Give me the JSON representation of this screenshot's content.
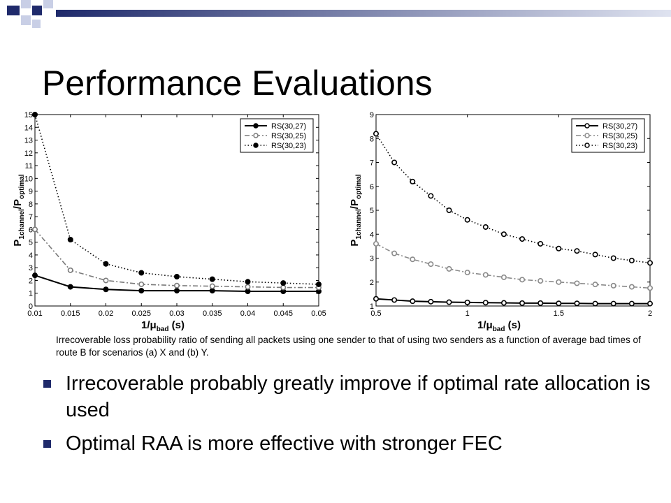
{
  "slide": {
    "title": "Performance Evaluations",
    "caption": "Irrecoverable loss probability ratio of sending all packets using one sender to that of using two senders as a function of average bad times of route B for scenarios (a) X and (b) Y.",
    "bullets": [
      "Irrecoverable probably greatly improve if optimal rate allocation is used",
      "Optimal RAA is more effective with stronger FEC"
    ],
    "accent_color": "#1f2a6b"
  },
  "chart_data": [
    {
      "type": "line",
      "xlabel_main": "1/μ",
      "xlabel_sub": "bad",
      "xlabel_unit": " (s)",
      "ylabel_main": "P",
      "ylabel_sub1": "1channel",
      "ylabel_slash": "/P",
      "ylabel_sub2": "optimal",
      "xlim": [
        0.01,
        0.05
      ],
      "ylim": [
        0,
        15
      ],
      "xticks": [
        "0.01",
        "0.015",
        "0.02",
        "0.025",
        "0.03",
        "0.035",
        "0.04",
        "0.045",
        "0.05"
      ],
      "yticks": [
        "0",
        "1",
        "2",
        "3",
        "4",
        "5",
        "6",
        "7",
        "8",
        "9",
        "10",
        "11",
        "12",
        "13",
        "14",
        "15"
      ],
      "x": [
        0.01,
        0.015,
        0.02,
        0.025,
        0.03,
        0.035,
        0.04,
        0.045,
        0.05
      ],
      "legend_position": "top-right",
      "series": [
        {
          "name": "RS(30,27)",
          "values": [
            2.4,
            1.5,
            1.3,
            1.2,
            1.2,
            1.2,
            1.15,
            1.15,
            1.15
          ],
          "style": "solid",
          "marker": "filled",
          "color": "#000000"
        },
        {
          "name": "RS(30,25)",
          "values": [
            6.0,
            2.8,
            2.0,
            1.7,
            1.6,
            1.55,
            1.5,
            1.45,
            1.45
          ],
          "style": "dashdot",
          "marker": "open",
          "color": "#7a7a7a"
        },
        {
          "name": "RS(30,23)",
          "values": [
            15.0,
            5.2,
            3.3,
            2.6,
            2.3,
            2.1,
            1.9,
            1.8,
            1.7
          ],
          "style": "dotted",
          "marker": "filled",
          "color": "#000000"
        }
      ]
    },
    {
      "type": "line",
      "xlabel_main": "1/μ",
      "xlabel_sub": "bad",
      "xlabel_unit": " (s)",
      "ylabel_main": "P",
      "ylabel_sub1": "1channel",
      "ylabel_slash": "/P",
      "ylabel_sub2": "optimal",
      "xlim": [
        0.5,
        2
      ],
      "ylim": [
        1,
        9
      ],
      "xticks": [
        "0.5",
        "1",
        "1.5",
        "2"
      ],
      "xtick_values": [
        0.5,
        1,
        1.5,
        2
      ],
      "yticks": [
        "1",
        "2",
        "3",
        "4",
        "5",
        "6",
        "7",
        "8",
        "9"
      ],
      "x": [
        0.5,
        0.6,
        0.7,
        0.8,
        0.9,
        1.0,
        1.1,
        1.2,
        1.3,
        1.4,
        1.5,
        1.6,
        1.7,
        1.8,
        1.9,
        2.0
      ],
      "legend_position": "top-right",
      "series": [
        {
          "name": "RS(30,27)",
          "values": [
            1.3,
            1.25,
            1.2,
            1.18,
            1.16,
            1.15,
            1.14,
            1.13,
            1.12,
            1.12,
            1.11,
            1.11,
            1.1,
            1.1,
            1.1,
            1.1
          ],
          "style": "solid",
          "marker": "open",
          "color": "#000000"
        },
        {
          "name": "RS(30,25)",
          "values": [
            3.6,
            3.2,
            2.95,
            2.75,
            2.55,
            2.4,
            2.3,
            2.2,
            2.1,
            2.05,
            2.0,
            1.95,
            1.9,
            1.85,
            1.8,
            1.75
          ],
          "style": "dashdot",
          "marker": "open",
          "color": "#8a8a8a"
        },
        {
          "name": "RS(30,23)",
          "values": [
            8.2,
            7.0,
            6.2,
            5.6,
            5.0,
            4.6,
            4.3,
            4.0,
            3.8,
            3.6,
            3.4,
            3.3,
            3.15,
            3.0,
            2.9,
            2.8
          ],
          "style": "dotted",
          "marker": "open",
          "color": "#000000"
        }
      ]
    }
  ]
}
